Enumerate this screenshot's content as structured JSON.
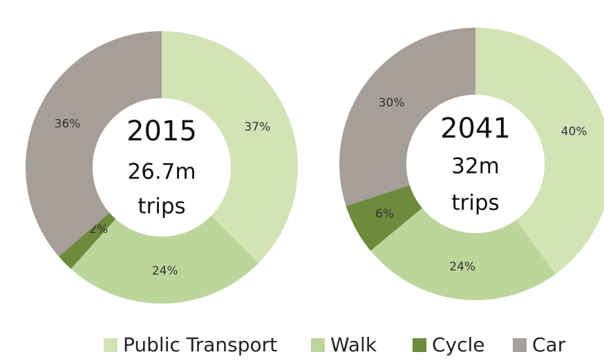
{
  "chart_data": [
    {
      "type": "pie",
      "center_text": [
        "2015",
        "26.7m",
        "trips"
      ],
      "categories": [
        "Public Transport",
        "Walk",
        "Cycle",
        "Car"
      ],
      "values": [
        37,
        24,
        2,
        36
      ],
      "value_labels": [
        "37%",
        "24%",
        "2%",
        "36%"
      ],
      "colors": [
        "#d3e3b6",
        "#bcd59b",
        "#6d8a3d",
        "#a69f99"
      ]
    },
    {
      "type": "pie",
      "center_text": [
        "2041",
        "32m",
        "trips"
      ],
      "categories": [
        "Public Transport",
        "Walk",
        "Cycle",
        "Car"
      ],
      "values": [
        40,
        24,
        6,
        30
      ],
      "value_labels": [
        "40%",
        "24%",
        "6%",
        "30%"
      ],
      "colors": [
        "#d3e3b6",
        "#bcd59b",
        "#6d8a3d",
        "#a69f99"
      ]
    }
  ]
}
